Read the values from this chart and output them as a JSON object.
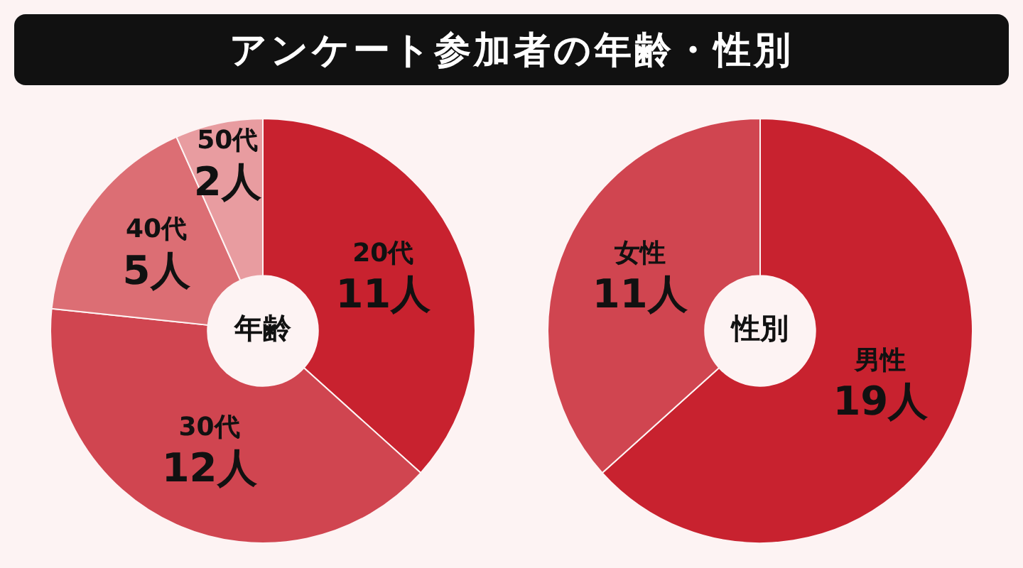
{
  "chart_data": [
    {
      "type": "donut",
      "title": "アンケート参加者の年齢・性別",
      "categories": [
        "20代",
        "30代",
        "40代",
        "50代"
      ],
      "values": [
        11,
        12,
        5,
        2
      ],
      "value_labels": [
        "11人",
        "12人",
        "5人",
        "2人"
      ],
      "colors": [
        "#c8222f",
        "#d04550",
        "#dc6e74",
        "#e89ca0"
      ],
      "annotations": [
        "年齢"
      ],
      "legend": false
    },
    {
      "type": "donut",
      "categories": [
        "男性",
        "女性"
      ],
      "values": [
        19,
        11
      ],
      "value_labels": [
        "19人",
        "11人"
      ],
      "colors": [
        "#c8222f",
        "#d04550"
      ],
      "annotations": [
        "性別"
      ],
      "legend": false
    }
  ]
}
